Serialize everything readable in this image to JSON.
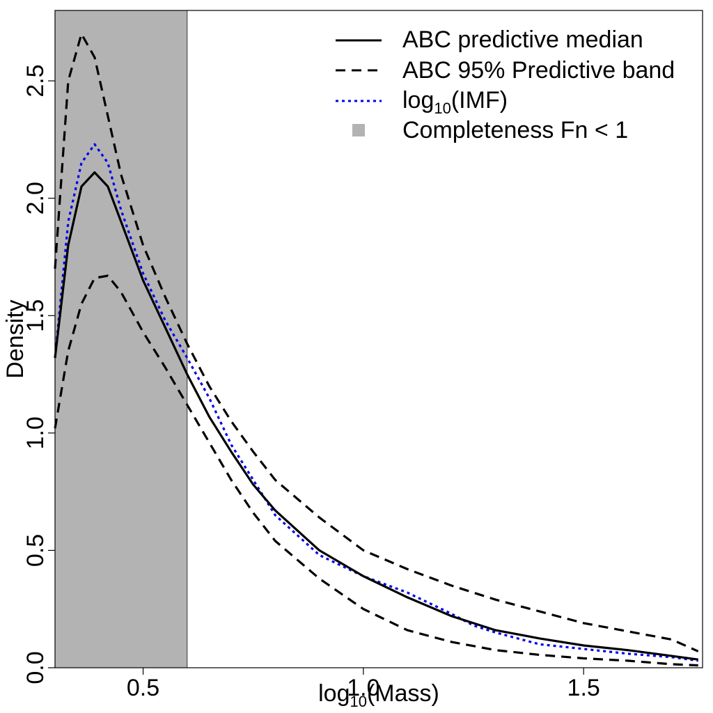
{
  "chart_data": {
    "type": "line",
    "title": "",
    "xlabel": {
      "base": "log",
      "sub": "10",
      "rest": "(Mass)"
    },
    "ylabel": "Density",
    "xlim": [
      0.3,
      1.77
    ],
    "ylim": [
      0.0,
      2.8
    ],
    "xticks": [
      0.5,
      1.0,
      1.5
    ],
    "xtick_labels": [
      "0.5",
      "1.0",
      "1.5"
    ],
    "yticks": [
      0.0,
      0.5,
      1.0,
      1.5,
      2.0,
      2.5
    ],
    "ytick_labels": [
      "0.0",
      "0.5",
      "1.0",
      "1.5",
      "2.0",
      "2.5"
    ],
    "grid": false,
    "legend_position": "top-right",
    "colors": {
      "median": "#000000",
      "band": "#000000",
      "imf": "#0000ee",
      "shade": "#b3b3b3"
    },
    "shaded_region": {
      "x": [
        0.3,
        0.6
      ],
      "legend_label": "Completeness Fn < 1"
    },
    "series": [
      {
        "key": "median",
        "legend_label": "ABC predictive median",
        "style": "solid",
        "x": [
          0.3,
          0.33,
          0.36,
          0.39,
          0.42,
          0.45,
          0.5,
          0.55,
          0.6,
          0.65,
          0.7,
          0.75,
          0.8,
          0.9,
          1.0,
          1.1,
          1.2,
          1.3,
          1.4,
          1.5,
          1.6,
          1.7,
          1.76
        ],
        "y": [
          1.32,
          1.8,
          2.05,
          2.11,
          2.05,
          1.9,
          1.65,
          1.45,
          1.25,
          1.07,
          0.92,
          0.78,
          0.67,
          0.5,
          0.39,
          0.3,
          0.22,
          0.16,
          0.125,
          0.095,
          0.075,
          0.05,
          0.035
        ]
      },
      {
        "key": "upper",
        "legend_label": "ABC 95% Predictive band",
        "style": "dashed",
        "x": [
          0.3,
          0.33,
          0.36,
          0.39,
          0.42,
          0.45,
          0.5,
          0.55,
          0.6,
          0.65,
          0.7,
          0.75,
          0.8,
          0.9,
          1.0,
          1.1,
          1.2,
          1.3,
          1.4,
          1.5,
          1.6,
          1.7,
          1.76
        ],
        "y": [
          1.7,
          2.5,
          2.7,
          2.6,
          2.35,
          2.1,
          1.8,
          1.58,
          1.38,
          1.2,
          1.05,
          0.92,
          0.8,
          0.64,
          0.5,
          0.42,
          0.35,
          0.29,
          0.24,
          0.19,
          0.155,
          0.12,
          0.07
        ]
      },
      {
        "key": "lower",
        "legend_label": "",
        "style": "dashed",
        "x": [
          0.3,
          0.33,
          0.36,
          0.39,
          0.42,
          0.45,
          0.5,
          0.55,
          0.6,
          0.65,
          0.7,
          0.75,
          0.8,
          0.9,
          1.0,
          1.1,
          1.2,
          1.3,
          1.4,
          1.5,
          1.6,
          1.7,
          1.76
        ],
        "y": [
          1.02,
          1.35,
          1.55,
          1.66,
          1.67,
          1.6,
          1.43,
          1.28,
          1.12,
          0.96,
          0.8,
          0.66,
          0.54,
          0.38,
          0.25,
          0.16,
          0.11,
          0.075,
          0.055,
          0.04,
          0.03,
          0.015,
          0.01
        ]
      },
      {
        "key": "imf",
        "legend_label": {
          "base": "log",
          "sub": "10",
          "rest": "(IMF)"
        },
        "style": "dotted",
        "x": [
          0.3,
          0.33,
          0.36,
          0.39,
          0.42,
          0.45,
          0.5,
          0.55,
          0.6,
          0.65,
          0.7,
          0.75,
          0.8,
          0.9,
          1.0,
          1.1,
          1.2,
          1.25,
          1.3,
          1.4,
          1.5,
          1.6,
          1.7,
          1.76
        ],
        "y": [
          1.32,
          1.9,
          2.15,
          2.23,
          2.15,
          1.95,
          1.68,
          1.48,
          1.32,
          1.15,
          0.95,
          0.8,
          0.65,
          0.48,
          0.39,
          0.32,
          0.23,
          0.18,
          0.15,
          0.1,
          0.08,
          0.06,
          0.045,
          0.03
        ]
      }
    ]
  }
}
